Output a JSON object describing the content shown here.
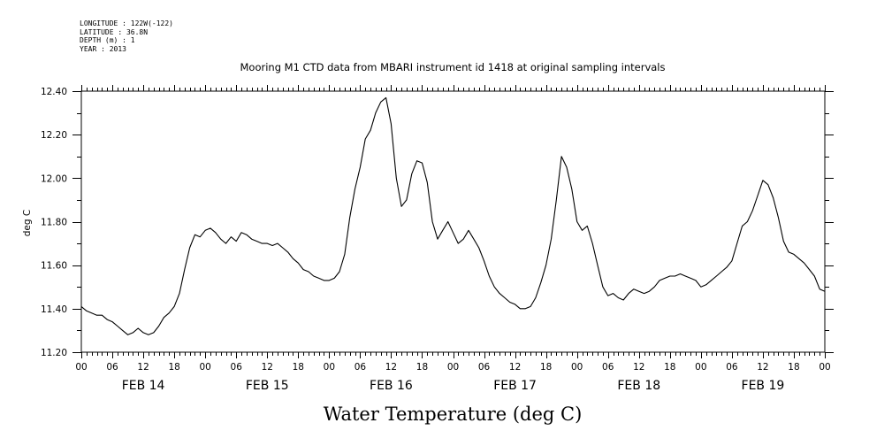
{
  "header": {
    "longitude": "LONGITUDE : 122W(-122)",
    "latitude": "LATITUDE : 36.8N",
    "depth": "DEPTH (m) : 1",
    "year": "YEAR : 2013"
  },
  "chart_data": {
    "type": "line",
    "title": "Mooring M1 CTD data from MBARI instrument id 1418 at original sampling intervals",
    "bottom_title": "Water Temperature (deg C)",
    "ylabel": "deg C",
    "xlabel": "",
    "ylim": [
      11.2,
      12.4
    ],
    "xlim": [
      0,
      144
    ],
    "x_units": "hours since FEB 14 00:00 (2013)",
    "y_ticks": [
      "11.20",
      "11.40",
      "11.60",
      "11.80",
      "12.00",
      "12.20",
      "12.40"
    ],
    "hour_tick_labels": [
      "00",
      "06",
      "12",
      "18",
      "00",
      "06",
      "12",
      "18",
      "00",
      "06",
      "12",
      "18",
      "00",
      "06",
      "12",
      "18",
      "00",
      "06",
      "12",
      "18",
      "00",
      "06",
      "12",
      "18",
      "00"
    ],
    "date_labels": [
      "FEB 14",
      "FEB 15",
      "FEB 16",
      "FEB 17",
      "FEB 18",
      "FEB 19"
    ],
    "grid": false,
    "series": [
      {
        "values": [
          [
            0,
            11.41
          ],
          [
            1,
            11.39
          ],
          [
            2,
            11.38
          ],
          [
            3,
            11.37
          ],
          [
            4,
            11.37
          ],
          [
            5,
            11.35
          ],
          [
            6,
            11.34
          ],
          [
            7,
            11.32
          ],
          [
            8,
            11.3
          ],
          [
            9,
            11.28
          ],
          [
            10,
            11.29
          ],
          [
            11,
            11.31
          ],
          [
            12,
            11.29
          ],
          [
            13,
            11.28
          ],
          [
            14,
            11.29
          ],
          [
            15,
            11.32
          ],
          [
            16,
            11.36
          ],
          [
            17,
            11.38
          ],
          [
            18,
            11.41
          ],
          [
            19,
            11.47
          ],
          [
            20,
            11.58
          ],
          [
            21,
            11.68
          ],
          [
            22,
            11.74
          ],
          [
            23,
            11.73
          ],
          [
            24,
            11.76
          ],
          [
            25,
            11.77
          ],
          [
            26,
            11.75
          ],
          [
            27,
            11.72
          ],
          [
            28,
            11.7
          ],
          [
            29,
            11.73
          ],
          [
            30,
            11.71
          ],
          [
            31,
            11.75
          ],
          [
            32,
            11.74
          ],
          [
            33,
            11.72
          ],
          [
            34,
            11.71
          ],
          [
            35,
            11.7
          ],
          [
            36,
            11.7
          ],
          [
            37,
            11.69
          ],
          [
            38,
            11.7
          ],
          [
            39,
            11.68
          ],
          [
            40,
            11.66
          ],
          [
            41,
            11.63
          ],
          [
            42,
            11.61
          ],
          [
            43,
            11.58
          ],
          [
            44,
            11.57
          ],
          [
            45,
            11.55
          ],
          [
            46,
            11.54
          ],
          [
            47,
            11.53
          ],
          [
            48,
            11.53
          ],
          [
            49,
            11.54
          ],
          [
            50,
            11.57
          ],
          [
            51,
            11.65
          ],
          [
            52,
            11.82
          ],
          [
            53,
            11.95
          ],
          [
            54,
            12.05
          ],
          [
            55,
            12.18
          ],
          [
            56,
            12.22
          ],
          [
            57,
            12.3
          ],
          [
            58,
            12.35
          ],
          [
            59,
            12.37
          ],
          [
            60,
            12.25
          ],
          [
            61,
            12.0
          ],
          [
            62,
            11.87
          ],
          [
            63,
            11.9
          ],
          [
            64,
            12.02
          ],
          [
            65,
            12.08
          ],
          [
            66,
            12.07
          ],
          [
            67,
            11.98
          ],
          [
            68,
            11.8
          ],
          [
            69,
            11.72
          ],
          [
            70,
            11.76
          ],
          [
            71,
            11.8
          ],
          [
            72,
            11.75
          ],
          [
            73,
            11.7
          ],
          [
            74,
            11.72
          ],
          [
            75,
            11.76
          ],
          [
            76,
            11.72
          ],
          [
            77,
            11.68
          ],
          [
            78,
            11.62
          ],
          [
            79,
            11.55
          ],
          [
            80,
            11.5
          ],
          [
            81,
            11.47
          ],
          [
            82,
            11.45
          ],
          [
            83,
            11.43
          ],
          [
            84,
            11.42
          ],
          [
            85,
            11.4
          ],
          [
            86,
            11.4
          ],
          [
            87,
            11.41
          ],
          [
            88,
            11.45
          ],
          [
            89,
            11.52
          ],
          [
            90,
            11.6
          ],
          [
            91,
            11.72
          ],
          [
            92,
            11.9
          ],
          [
            93,
            12.1
          ],
          [
            94,
            12.05
          ],
          [
            95,
            11.95
          ],
          [
            96,
            11.8
          ],
          [
            97,
            11.76
          ],
          [
            98,
            11.78
          ],
          [
            99,
            11.7
          ],
          [
            100,
            11.6
          ],
          [
            101,
            11.5
          ],
          [
            102,
            11.46
          ],
          [
            103,
            11.47
          ],
          [
            104,
            11.45
          ],
          [
            105,
            11.44
          ],
          [
            106,
            11.47
          ],
          [
            107,
            11.49
          ],
          [
            108,
            11.48
          ],
          [
            109,
            11.47
          ],
          [
            110,
            11.48
          ],
          [
            111,
            11.5
          ],
          [
            112,
            11.53
          ],
          [
            113,
            11.54
          ],
          [
            114,
            11.55
          ],
          [
            115,
            11.55
          ],
          [
            116,
            11.56
          ],
          [
            117,
            11.55
          ],
          [
            118,
            11.54
          ],
          [
            119,
            11.53
          ],
          [
            120,
            11.5
          ],
          [
            121,
            11.51
          ],
          [
            122,
            11.53
          ],
          [
            123,
            11.55
          ],
          [
            124,
            11.57
          ],
          [
            125,
            11.59
          ],
          [
            126,
            11.62
          ],
          [
            127,
            11.7
          ],
          [
            128,
            11.78
          ],
          [
            129,
            11.8
          ],
          [
            130,
            11.85
          ],
          [
            131,
            11.92
          ],
          [
            132,
            11.99
          ],
          [
            133,
            11.97
          ],
          [
            134,
            11.91
          ],
          [
            135,
            11.82
          ],
          [
            136,
            11.71
          ],
          [
            137,
            11.66
          ],
          [
            138,
            11.65
          ],
          [
            139,
            11.63
          ],
          [
            140,
            11.61
          ],
          [
            141,
            11.58
          ],
          [
            142,
            11.55
          ],
          [
            143,
            11.49
          ],
          [
            144,
            11.48
          ]
        ]
      }
    ]
  }
}
